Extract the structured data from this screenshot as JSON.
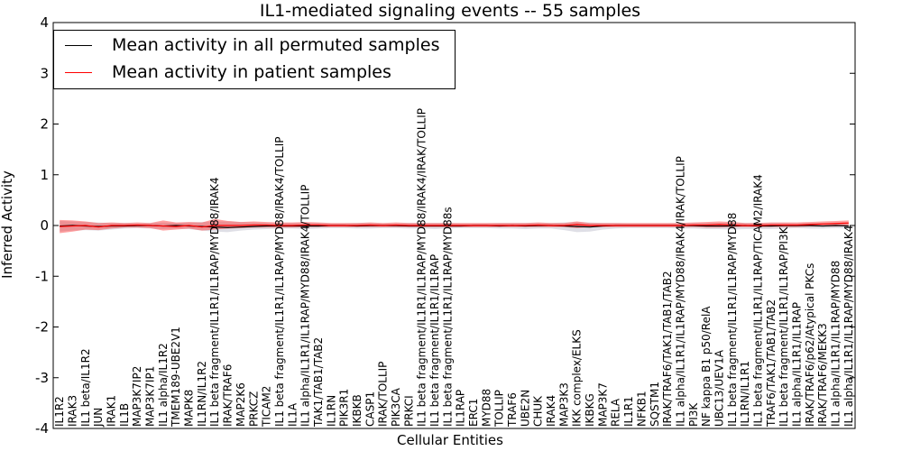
{
  "chart_data": {
    "type": "line",
    "title": "IL1-mediated signaling events -- 55 samples",
    "xlabel": "Cellular Entities",
    "ylabel": "Inferred Activity",
    "ylim": [
      -4,
      4
    ],
    "yticks": [
      4,
      3,
      2,
      1,
      0,
      -1,
      -2,
      -3,
      -4
    ],
    "grid": false,
    "legend_position": "top-left",
    "categories": [
      "IL1R2",
      "IRAK3",
      "IL1 beta/IL1R2",
      "JUN",
      "IRAK1",
      "IL1B",
      "MAP3K7IP2",
      "MAP3K7IP1",
      "IL1 alpha/IL1R2",
      "TMEM189-UBE2V1",
      "MAPK8",
      "IL1RN/IL1R2",
      "IL1 beta fragment/IL1R1/IL1RAP/MYD88/IRAK4",
      "IRAK/TRAF6",
      "MAP2K6",
      "PRKCZ",
      "TICAM2",
      "IL1 beta fragment/IL1R1/IL1RAP/MYD88/IRAK4/TOLLIP",
      "IL1A",
      "IL1 alpha/IL1R1/IL1RAP/MYD88/IRAK4/TOLLIP",
      "TAK1/TAB1/TAB2",
      "IL1RN",
      "PIK3R1",
      "IKBKB",
      "CASP1",
      "IRAK/TOLLIP",
      "PIK3CA",
      "PRKCI",
      "IL1 beta fragment/IL1R1/IL1RAP/MYD88/IRAK4/IRAK/TOLLIP",
      "IL1 beta fragment/IL1R1/IL1RAP",
      "IL1 beta fragment/IL1R1/IL1RAP/MYD88s",
      "IL1RAP",
      "ERC1",
      "MYD88",
      "TOLLIP",
      "TRAF6",
      "UBE2N",
      "CHUK",
      "IRAK4",
      "MAP3K3",
      "IKK complex/ELKS",
      "IKBKG",
      "MAP3K7",
      "RELA",
      "IL1R1",
      "NFKB1",
      "SQSTM1",
      "IRAK/TRAF6/TAK1/TAB1/TAB2",
      "IL1 alpha/IL1R1/IL1RAP/MYD88/IRAK4/IRAK/TOLLIP",
      "PI3K",
      "NF kappa B1 p50/RelA",
      "UBC13/UEV1A",
      "IL1 beta fragment/IL1R1/IL1RAP/MYD88",
      "IL1RN/IL1R1",
      "IL1 beta fragment/IL1R1/IL1RAP/TICAM2/IRAK4",
      "TRAF6/TAK1/TAB1/TAB2",
      "IL1 beta fragment/IL1R1/IL1RAP/PI3K",
      "IL1 alpha/IL1R1/IL1RAP",
      "IRAK/TRAF6/p62/Atypical PKCs",
      "IRAK/TRAF6/MEKK3",
      "IL1 alpha/IL1R1/IL1RAP/MYD88",
      "IL1 alpha/IL1R1/IL1RAP/MYD88/IRAK4"
    ],
    "series": [
      {
        "name": "Mean activity in all permuted samples",
        "color": "#000000",
        "values": [
          -0.01,
          0.0,
          -0.01,
          -0.02,
          -0.01,
          -0.01,
          0.0,
          0.0,
          -0.01,
          0.0,
          -0.01,
          -0.02,
          -0.03,
          -0.04,
          -0.03,
          -0.02,
          -0.01,
          -0.01,
          -0.01,
          -0.01,
          -0.01,
          0.0,
          0.0,
          -0.01,
          0.0,
          0.0,
          0.0,
          -0.01,
          -0.01,
          -0.01,
          -0.01,
          -0.01,
          0.0,
          0.0,
          -0.01,
          0.0,
          -0.01,
          0.0,
          0.0,
          -0.01,
          -0.02,
          -0.03,
          -0.01,
          0.0,
          0.0,
          0.0,
          0.0,
          0.0,
          0.0,
          0.0,
          -0.01,
          -0.01,
          -0.01,
          0.0,
          -0.01,
          -0.01,
          0.0,
          0.0,
          0.0,
          -0.01,
          0.0,
          -0.01
        ],
        "band_lower": [
          -0.12,
          -0.1,
          -0.09,
          -0.1,
          -0.08,
          -0.06,
          -0.05,
          -0.06,
          -0.07,
          -0.06,
          -0.07,
          -0.1,
          -0.12,
          -0.13,
          -0.1,
          -0.08,
          -0.07,
          -0.06,
          -0.06,
          -0.07,
          -0.06,
          -0.05,
          -0.05,
          -0.06,
          -0.06,
          -0.05,
          -0.05,
          -0.06,
          -0.06,
          -0.07,
          -0.06,
          -0.05,
          -0.05,
          -0.05,
          -0.06,
          -0.06,
          -0.07,
          -0.06,
          -0.06,
          -0.09,
          -0.13,
          -0.12,
          -0.08,
          -0.06,
          -0.05,
          -0.05,
          -0.05,
          -0.05,
          -0.06,
          -0.06,
          -0.07,
          -0.07,
          -0.08,
          -0.07,
          -0.07,
          -0.07,
          -0.06,
          -0.05,
          -0.06,
          -0.06,
          -0.05,
          -0.06
        ],
        "band_upper": [
          0.09,
          0.08,
          0.07,
          0.06,
          0.05,
          0.05,
          0.04,
          0.05,
          0.06,
          0.05,
          0.06,
          0.07,
          0.08,
          0.08,
          0.07,
          0.06,
          0.05,
          0.05,
          0.05,
          0.05,
          0.05,
          0.04,
          0.04,
          0.05,
          0.05,
          0.04,
          0.04,
          0.05,
          0.05,
          0.05,
          0.05,
          0.04,
          0.04,
          0.04,
          0.05,
          0.05,
          0.05,
          0.05,
          0.05,
          0.06,
          0.07,
          0.06,
          0.05,
          0.05,
          0.04,
          0.04,
          0.04,
          0.04,
          0.05,
          0.05,
          0.05,
          0.05,
          0.06,
          0.05,
          0.05,
          0.05,
          0.05,
          0.04,
          0.05,
          0.05,
          0.04,
          0.05
        ]
      },
      {
        "name": "Mean activity in patient samples",
        "color": "#ff0000",
        "values": [
          -0.02,
          -0.01,
          0.0,
          -0.03,
          0.0,
          0.0,
          0.01,
          0.0,
          -0.01,
          -0.02,
          0.0,
          -0.03,
          0.0,
          0.0,
          0.0,
          0.01,
          0.01,
          0.0,
          0.0,
          0.01,
          0.01,
          0.0,
          0.0,
          0.0,
          0.01,
          0.0,
          0.01,
          0.0,
          0.0,
          0.0,
          0.0,
          0.0,
          0.0,
          0.0,
          0.0,
          0.0,
          0.0,
          0.01,
          0.0,
          0.0,
          0.02,
          0.0,
          0.0,
          0.0,
          0.0,
          0.0,
          0.0,
          0.0,
          0.0,
          0.01,
          0.01,
          0.02,
          0.01,
          0.0,
          0.0,
          0.01,
          0.01,
          0.01,
          0.02,
          0.03,
          0.04,
          0.05
        ],
        "band_lower": [
          -0.15,
          -0.12,
          -0.08,
          -0.09,
          -0.06,
          -0.04,
          -0.04,
          -0.05,
          -0.1,
          -0.08,
          -0.06,
          -0.1,
          -0.08,
          -0.06,
          -0.05,
          -0.04,
          -0.04,
          -0.04,
          -0.04,
          -0.03,
          -0.03,
          -0.03,
          -0.03,
          -0.03,
          -0.03,
          -0.03,
          -0.03,
          -0.03,
          -0.03,
          -0.03,
          -0.03,
          -0.03,
          -0.03,
          -0.03,
          -0.03,
          -0.03,
          -0.03,
          -0.03,
          -0.03,
          -0.03,
          -0.05,
          -0.03,
          -0.03,
          -0.03,
          -0.03,
          -0.03,
          -0.03,
          -0.03,
          -0.03,
          -0.03,
          -0.04,
          -0.04,
          -0.03,
          -0.03,
          -0.03,
          -0.03,
          -0.03,
          -0.03,
          -0.02,
          -0.02,
          -0.02,
          -0.01
        ],
        "band_upper": [
          0.11,
          0.1,
          0.08,
          0.05,
          0.06,
          0.05,
          0.06,
          0.05,
          0.1,
          0.06,
          0.07,
          0.06,
          0.13,
          0.09,
          0.07,
          0.08,
          0.07,
          0.06,
          0.06,
          0.07,
          0.06,
          0.05,
          0.05,
          0.05,
          0.06,
          0.05,
          0.06,
          0.05,
          0.05,
          0.05,
          0.05,
          0.05,
          0.05,
          0.05,
          0.05,
          0.05,
          0.05,
          0.06,
          0.05,
          0.05,
          0.08,
          0.05,
          0.05,
          0.05,
          0.05,
          0.05,
          0.05,
          0.05,
          0.05,
          0.06,
          0.07,
          0.08,
          0.07,
          0.05,
          0.05,
          0.06,
          0.06,
          0.06,
          0.07,
          0.08,
          0.09,
          0.1
        ]
      }
    ]
  }
}
